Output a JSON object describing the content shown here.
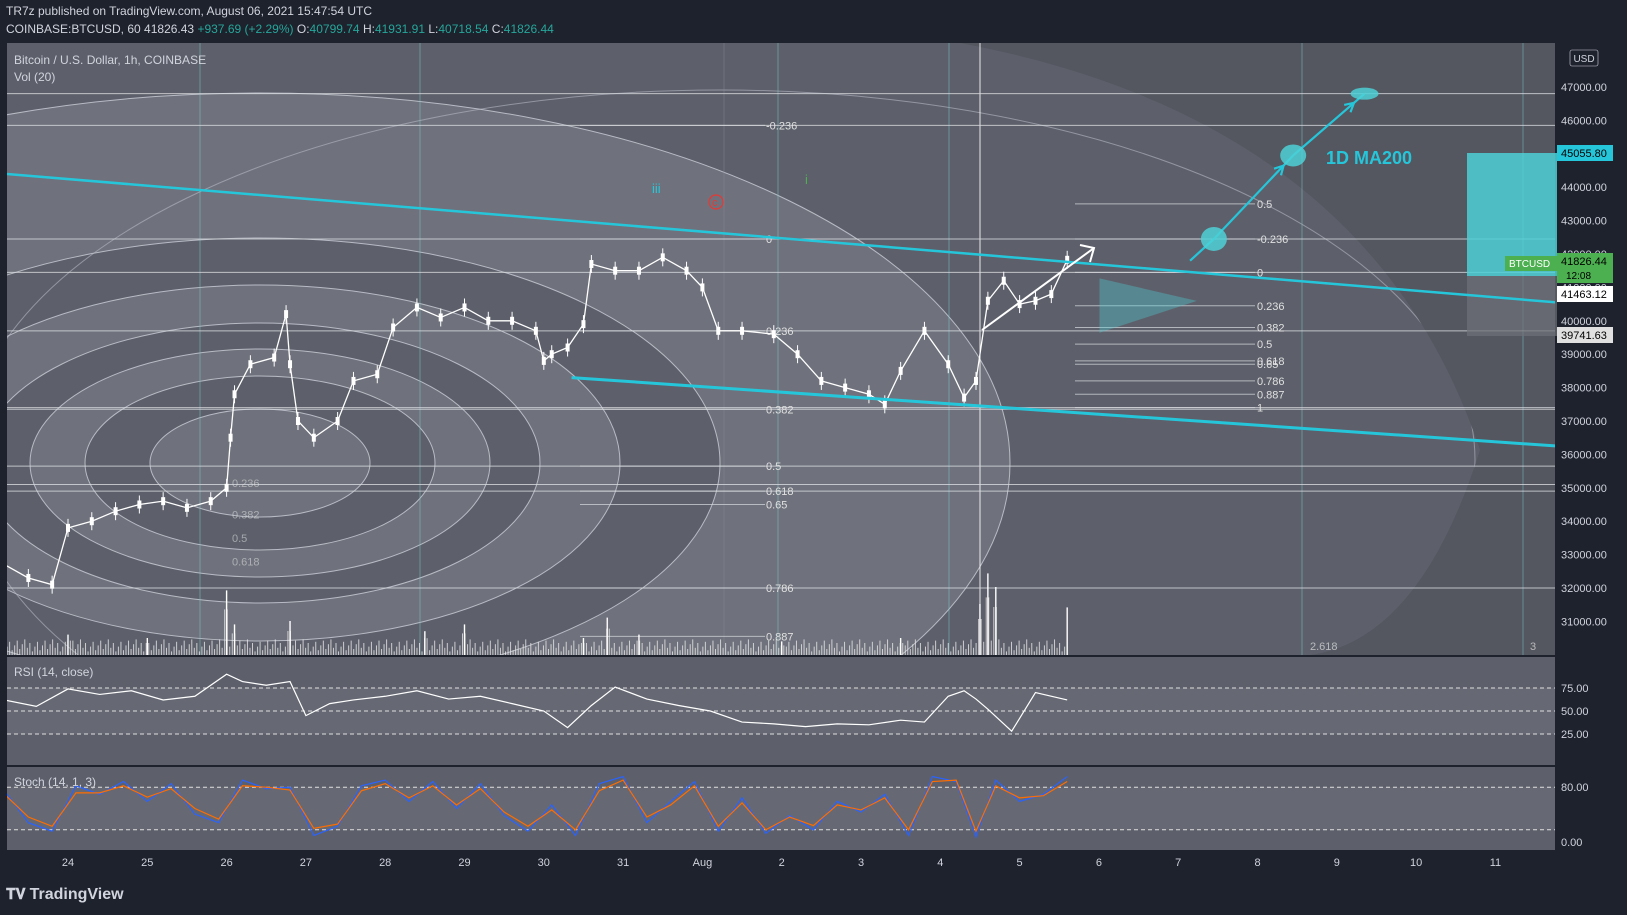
{
  "header": {
    "publisher_line": "TR7z published on TradingView.com, August 06, 2021 15:47:54 UTC",
    "symbol": "COINBASE:BTCUSD, 60",
    "last": "41826.43",
    "change": "+937.69 (+2.29%)",
    "o_label": "O:",
    "o": "40799.74",
    "h_label": "H:",
    "h": "41931.91",
    "l_label": "L:",
    "l": "40718.54",
    "c_label": "C:",
    "c": "41826.44"
  },
  "main_pane": {
    "title": "Bitcoin / U.S. Dollar, 1h, COINBASE",
    "vol_label": "Vol (20)",
    "currency": "USD",
    "price_badges": {
      "ma200": "45055.80",
      "ticker": "BTCUSD",
      "last_price": "41826.44",
      "countdown": "12:08",
      "level_1": "41463.12",
      "level_2": "39741.63"
    },
    "annotations": {
      "wave_iii": "iii",
      "wave_c": "c",
      "wave_i": "i",
      "ma_label": "1D MA200"
    },
    "fib_left": [
      "-0.236",
      "0",
      "0.236",
      "0.382",
      "0.5",
      "0.618",
      "0.65",
      "0.786",
      "0.887"
    ],
    "fib_right": [
      "0.5",
      "-0.236",
      "0",
      "0.236",
      "0.382",
      "0.5",
      "0.618",
      "0.65",
      "0.786",
      "0.887",
      "1"
    ],
    "fib_ext_labels": [
      "2.618",
      "3"
    ],
    "inner_ring_labels": [
      "0.236",
      "0.382",
      "0.5",
      "0.618"
    ]
  },
  "rsi_pane": {
    "title": "RSI (14, close)",
    "levels": [
      "75.00",
      "50.00",
      "25.00"
    ]
  },
  "stoch_pane": {
    "title": "Stoch (14, 1, 3)",
    "levels": [
      "80.00",
      "0.00"
    ]
  },
  "colors": {
    "accent": "#26c6da",
    "bg": "#1e222d",
    "pane": "#5d606b",
    "up": "#26a69a",
    "ma_box": "#4dd0d6",
    "badge_green": "#4caf50"
  },
  "chart_data": {
    "type": "line",
    "title": "Bitcoin / U.S. Dollar, 1h, COINBASE",
    "xlabel": "",
    "ylabel": "USD",
    "x_ticks": [
      "24",
      "25",
      "26",
      "27",
      "28",
      "29",
      "30",
      "31",
      "Aug",
      "2",
      "3",
      "4",
      "5",
      "6",
      "7",
      "8",
      "9",
      "10",
      "11"
    ],
    "y_ticks": [
      31000,
      32000,
      33000,
      34000,
      35000,
      36000,
      37000,
      38000,
      39000,
      40000,
      41000,
      42000,
      43000,
      44000,
      45000,
      46000,
      47000
    ],
    "y_tick_labels": [
      "31000.00",
      "32000.00",
      "33000.00",
      "34000.00",
      "35000.00",
      "36000.00",
      "37000.00",
      "38000.00",
      "39000.00",
      "40000.00",
      "41000.00",
      "42000.00",
      "43000.00",
      "44000.00",
      "45000.00",
      "46000.00",
      "47000.00"
    ],
    "ylim": [
      30400,
      48200
    ],
    "xlim": [
      23.2,
      11.9
    ],
    "price_series": {
      "name": "BTCUSD close (approx.)",
      "x_day": [
        23.2,
        23.5,
        23.8,
        24.0,
        24.3,
        24.6,
        24.9,
        25.2,
        25.5,
        25.8,
        26.0,
        26.05,
        26.1,
        26.3,
        26.6,
        26.75,
        26.8,
        26.9,
        27.1,
        27.4,
        27.6,
        27.9,
        28.1,
        28.4,
        28.7,
        29.0,
        29.3,
        29.6,
        29.9,
        30.0,
        30.1,
        30.3,
        30.5,
        30.6,
        30.9,
        31.2,
        31.5,
        31.8,
        32.0,
        32.2,
        32.5,
        32.9,
        33.2,
        33.5,
        33.8,
        34.1,
        34.3,
        34.5,
        34.8,
        35.1,
        35.3,
        35.45,
        35.6,
        35.8,
        36.0,
        36.2,
        36.4,
        36.6
      ],
      "price": [
        32700,
        32300,
        32100,
        33800,
        34000,
        34300,
        34500,
        34600,
        34400,
        34600,
        35000,
        36500,
        37800,
        38700,
        38900,
        40200,
        38700,
        37000,
        36500,
        37000,
        38200,
        38400,
        39800,
        40400,
        40100,
        40400,
        40000,
        40000,
        39700,
        38800,
        39000,
        39200,
        39900,
        41700,
        41500,
        41500,
        41900,
        41500,
        41000,
        39700,
        39700,
        39600,
        39000,
        38200,
        38000,
        37800,
        37500,
        38500,
        39700,
        38700,
        37700,
        38200,
        40600,
        41200,
        40500,
        40600,
        40800,
        41826
      ]
    },
    "resistance_line": {
      "name": "upper trendline",
      "x_day": [
        23.2,
        12.0
      ],
      "price": [
        44400,
        40550
      ]
    },
    "support_line": {
      "name": "lower trendline",
      "x_day": [
        30.35,
        12.0
      ],
      "price": [
        38300,
        36250
      ]
    },
    "projection": {
      "name": "projected path",
      "x_day": [
        7.15,
        7.45,
        8.45,
        9.35
      ],
      "price": [
        41800,
        42450,
        44950,
        46800
      ],
      "target_label": "1D MA200",
      "target_value": 45055.8
    },
    "horizontal_levels": [
      46800,
      45850,
      42450,
      41450,
      39700,
      37350,
      37400,
      35650,
      35100,
      34900,
      32000
    ],
    "rsi": {
      "levels": [
        75,
        50,
        25
      ],
      "x_day": [
        23.2,
        23.6,
        24.0,
        24.4,
        24.8,
        25.2,
        25.6,
        26.0,
        26.2,
        26.5,
        26.8,
        27.0,
        27.3,
        27.6,
        28.0,
        28.4,
        28.8,
        29.2,
        29.6,
        30.0,
        30.3,
        30.6,
        30.9,
        31.3,
        31.7,
        32.1,
        32.5,
        32.9,
        33.3,
        33.7,
        34.1,
        34.5,
        34.8,
        35.1,
        35.3,
        35.45,
        35.6,
        35.9,
        36.2,
        36.6
      ],
      "values": [
        62,
        55,
        74,
        68,
        72,
        62,
        66,
        90,
        82,
        78,
        82,
        45,
        58,
        62,
        66,
        72,
        63,
        66,
        58,
        50,
        32,
        56,
        76,
        63,
        56,
        50,
        38,
        36,
        33,
        36,
        35,
        40,
        38,
        66,
        72,
        63,
        52,
        28,
        70,
        62
      ]
    },
    "stoch": {
      "levels": [
        80,
        20
      ],
      "k_x_day": [
        23.2,
        23.5,
        23.8,
        24.1,
        24.4,
        24.7,
        25.0,
        25.3,
        25.6,
        25.9,
        26.2,
        26.5,
        26.8,
        27.1,
        27.4,
        27.7,
        28.0,
        28.3,
        28.6,
        28.9,
        29.2,
        29.5,
        29.8,
        30.1,
        30.4,
        30.7,
        31.0,
        31.3,
        31.6,
        31.9,
        32.2,
        32.5,
        32.8,
        33.1,
        33.4,
        33.7,
        34.0,
        34.3,
        34.6,
        34.9,
        35.2,
        35.45,
        35.7,
        36.0,
        36.3,
        36.6
      ],
      "k": [
        75,
        30,
        18,
        82,
        70,
        88,
        60,
        85,
        42,
        30,
        90,
        78,
        80,
        12,
        25,
        82,
        90,
        60,
        88,
        50,
        85,
        40,
        18,
        55,
        12,
        85,
        95,
        30,
        60,
        88,
        18,
        65,
        15,
        40,
        20,
        60,
        45,
        70,
        12,
        95,
        88,
        10,
        90,
        60,
        70,
        95
      ],
      "d": [
        70,
        38,
        25,
        72,
        72,
        82,
        66,
        78,
        50,
        35,
        82,
        80,
        76,
        22,
        28,
        75,
        85,
        65,
        82,
        55,
        78,
        45,
        25,
        48,
        20,
        75,
        90,
        38,
        55,
        82,
        25,
        58,
        20,
        38,
        26,
        55,
        48,
        65,
        20,
        88,
        90,
        18,
        82,
        65,
        68,
        88
      ]
    },
    "volume": {
      "x_day": [
        24.0,
        25.0,
        26.0,
        26.1,
        26.8,
        28.5,
        29.0,
        30.5,
        30.8,
        31.2,
        33.0,
        34.5,
        35.5,
        35.6,
        35.7,
        36.6
      ],
      "values": [
        12,
        10,
        38,
        18,
        20,
        14,
        18,
        10,
        22,
        12,
        8,
        10,
        30,
        48,
        40,
        28
      ]
    }
  }
}
